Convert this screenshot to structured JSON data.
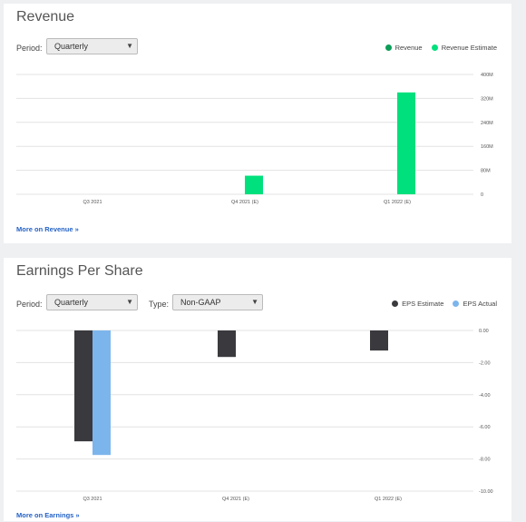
{
  "revenue": {
    "title": "Revenue",
    "period_label": "Period:",
    "period_value": "Quarterly",
    "legend": [
      {
        "name": "Revenue",
        "color": "#0d9d58"
      },
      {
        "name": "Revenue Estimate",
        "color": "#00e07c"
      }
    ],
    "more_link": "More on Revenue »"
  },
  "eps": {
    "title": "Earnings Per Share",
    "period_label": "Period:",
    "period_value": "Quarterly",
    "type_label": "Type:",
    "type_value": "Non-GAAP",
    "legend": [
      {
        "name": "EPS Estimate",
        "color": "#3a3a3e"
      },
      {
        "name": "EPS Actual",
        "color": "#7cb5ec"
      }
    ],
    "more_link": "More on Earnings »"
  },
  "chart_data": [
    {
      "type": "bar",
      "categories": [
        "Q3 2021",
        "Q4 2021 (E)",
        "Q1 2022 (E)"
      ],
      "ylim": [
        0,
        400000000
      ],
      "yticks": [
        0,
        80000000,
        160000000,
        240000000,
        320000000,
        400000000
      ],
      "ytick_labels": [
        "0",
        "80M",
        "160M",
        "240M",
        "320M",
        "400M"
      ],
      "series": [
        {
          "name": "Revenue",
          "color": "#0d9d58",
          "values": [
            null,
            null,
            null
          ]
        },
        {
          "name": "Revenue Estimate",
          "color": "#00e07c",
          "values": [
            null,
            62000000,
            340000000
          ]
        }
      ]
    },
    {
      "type": "bar",
      "categories": [
        "Q3 2021",
        "Q4 2021 (E)",
        "Q1 2022 (E)"
      ],
      "ylim": [
        -10,
        0
      ],
      "yticks": [
        0,
        -2,
        -4,
        -6,
        -8,
        -10
      ],
      "ytick_labels": [
        "0.00",
        "-2.00",
        "-4.00",
        "-6.00",
        "-8.00",
        "-10.00"
      ],
      "series": [
        {
          "name": "EPS Estimate",
          "color": "#3a3a3e",
          "values": [
            -6.9,
            -1.65,
            -1.25
          ]
        },
        {
          "name": "EPS Actual",
          "color": "#7cb5ec",
          "values": [
            -7.75,
            null,
            null
          ]
        }
      ]
    }
  ]
}
